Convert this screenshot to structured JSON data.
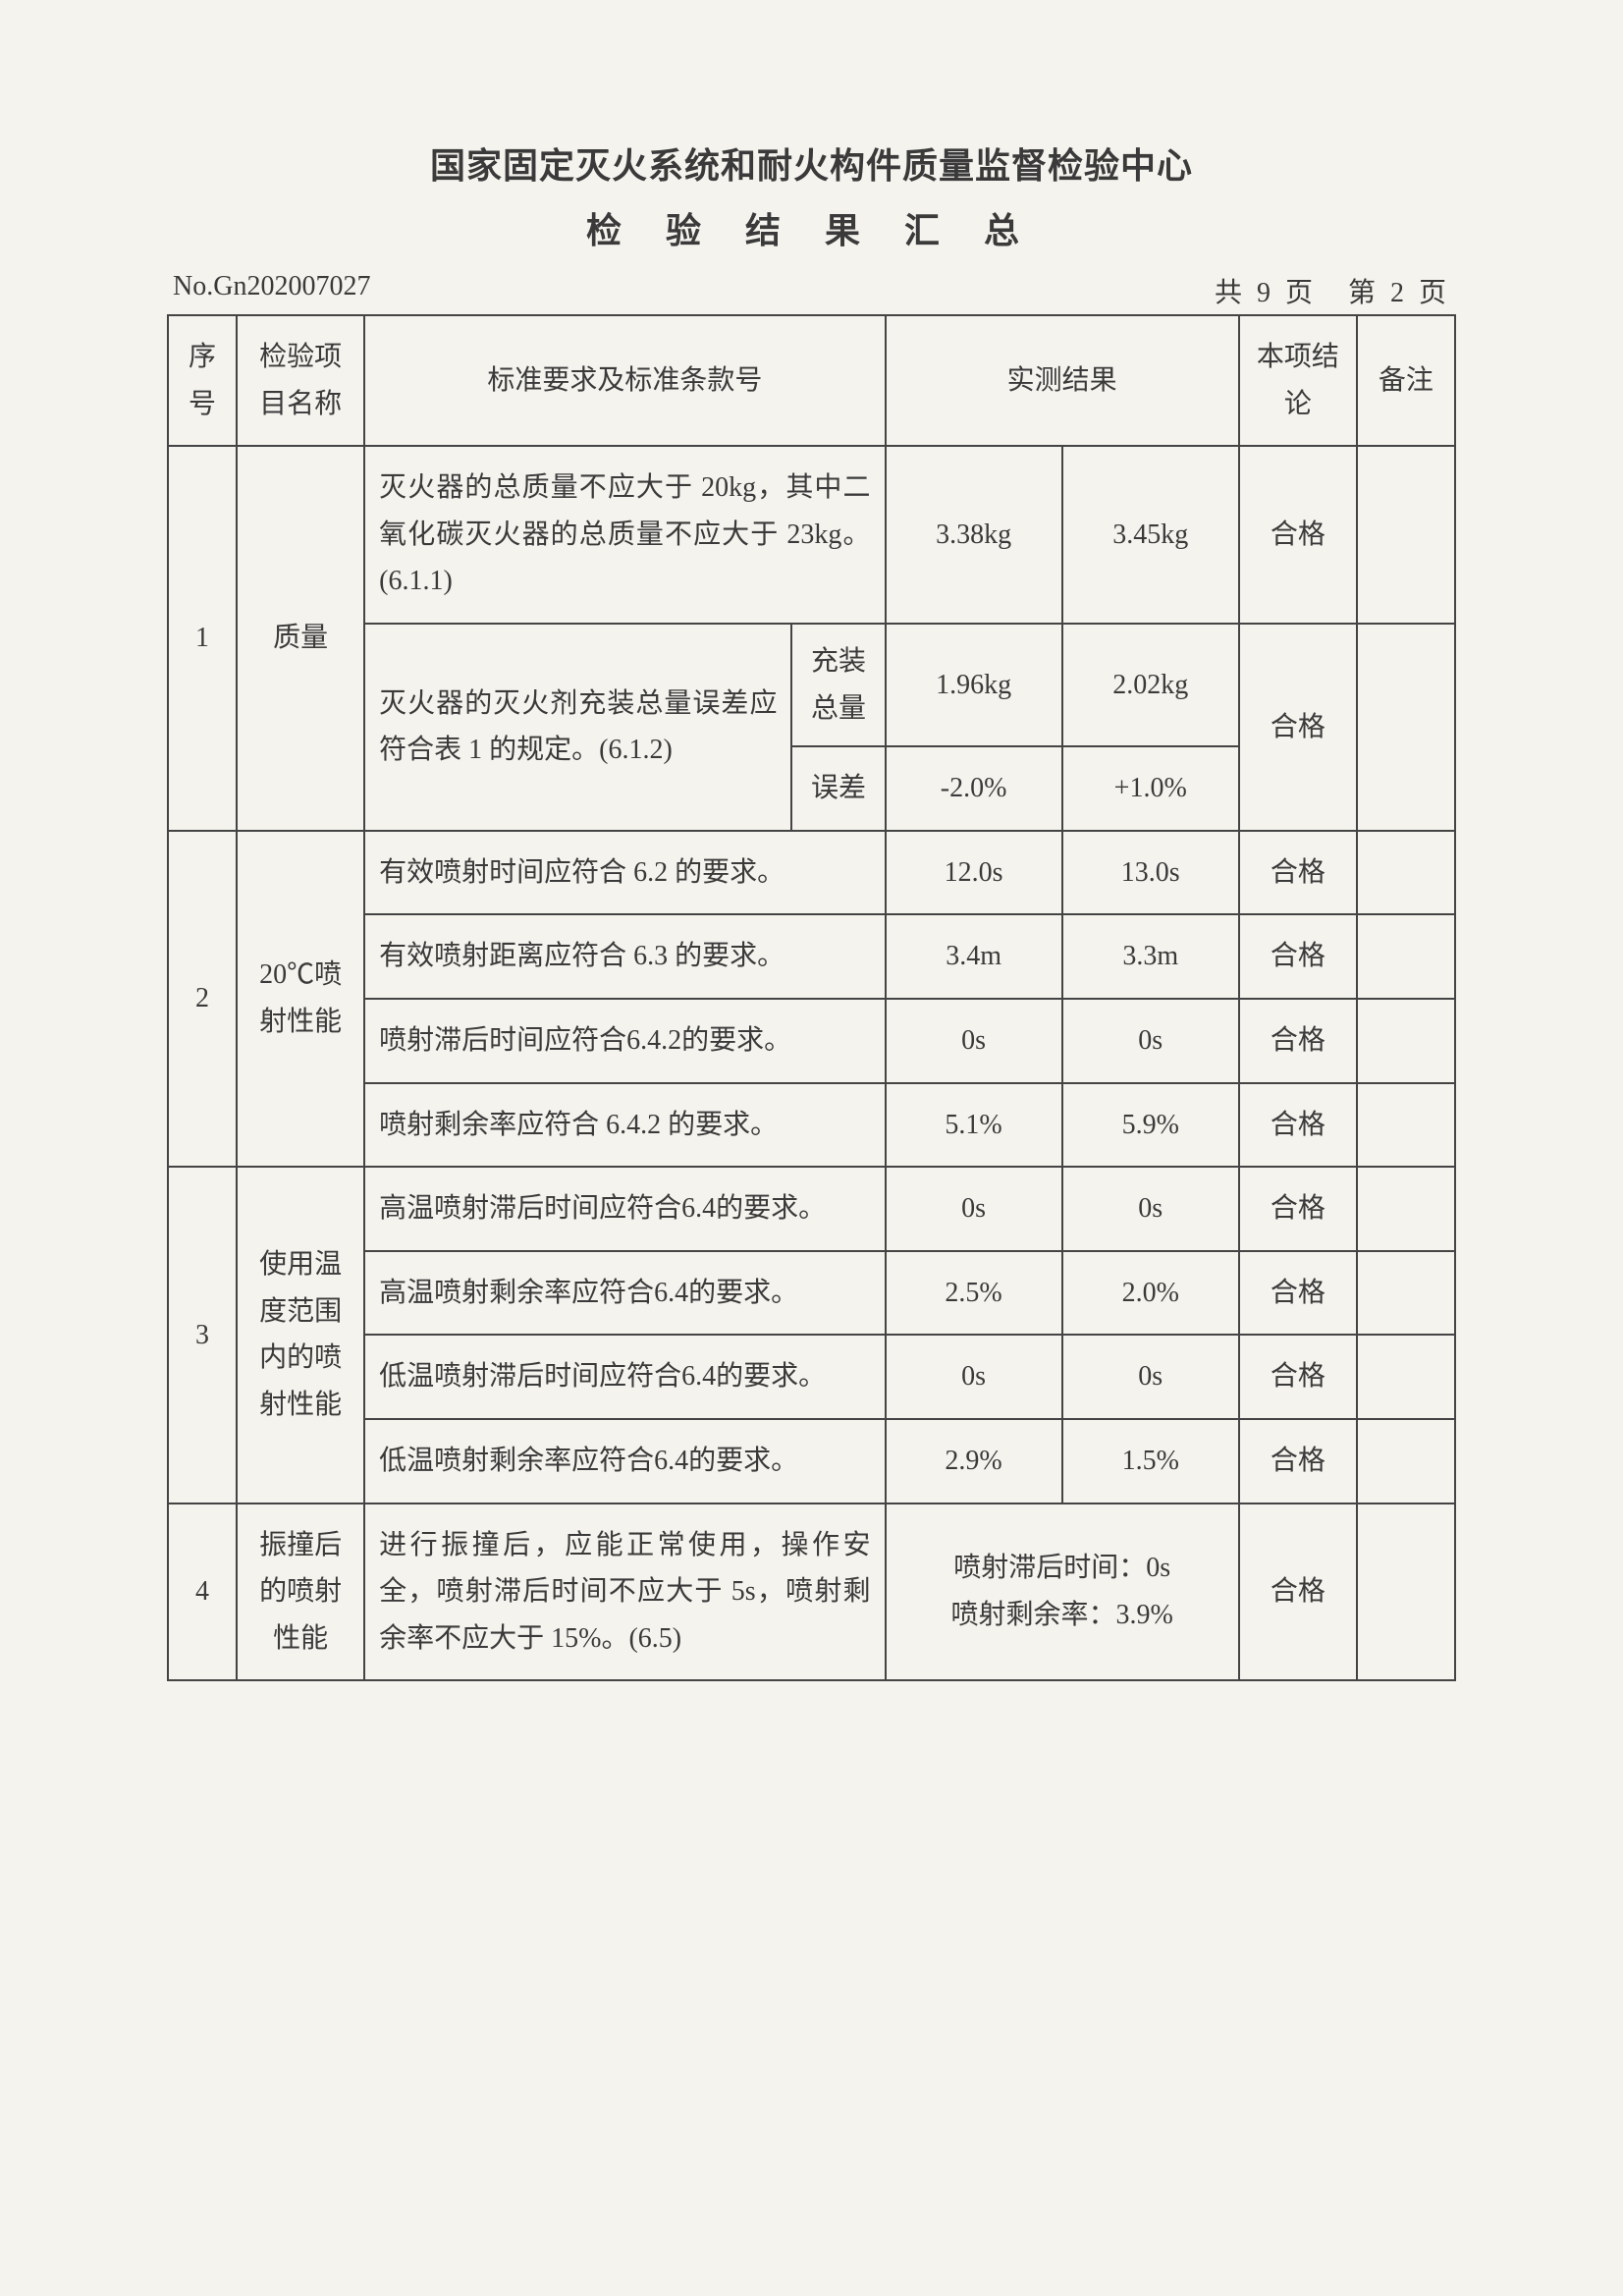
{
  "header": {
    "title1": "国家固定灭火系统和耐火构件质量监督检验中心",
    "title2": "检 验 结 果 汇 总",
    "docNo": "No.Gn202007027",
    "pageInfo": "共 9 页　第 2 页"
  },
  "columns": {
    "seq": "序号",
    "item": "检验项目名称",
    "std": "标准要求及标准条款号",
    "measured": "实测结果",
    "conclusion": "本项结论",
    "remark": "备注"
  },
  "rows": {
    "r1": {
      "seq": "1",
      "item": "质量",
      "std_a": "灭火器的总质量不应大于 20kg，其中二氧化碳灭火器的总质量不应大于 23kg。(6.1.1)",
      "m1_a": "3.38kg",
      "m2_a": "3.45kg",
      "conc_a": "合格",
      "std_b": "灭火器的灭火剂充装总量误差应符合表 1 的规定。(6.1.2)",
      "sub_b1": "充装总量",
      "m1_b1": "1.96kg",
      "m2_b1": "2.02kg",
      "sub_b2": "误差",
      "m1_b2": "-2.0%",
      "m2_b2": "+1.0%",
      "conc_b": "合格"
    },
    "r2": {
      "seq": "2",
      "item": "20℃喷射性能",
      "std_a": "有效喷射时间应符合 6.2 的要求。",
      "m1_a": "12.0s",
      "m2_a": "13.0s",
      "conc_a": "合格",
      "std_b": "有效喷射距离应符合 6.3 的要求。",
      "m1_b": "3.4m",
      "m2_b": "3.3m",
      "conc_b": "合格",
      "std_c": "喷射滞后时间应符合6.4.2的要求。",
      "m1_c": "0s",
      "m2_c": "0s",
      "conc_c": "合格",
      "std_d": "喷射剩余率应符合 6.4.2 的要求。",
      "m1_d": "5.1%",
      "m2_d": "5.9%",
      "conc_d": "合格"
    },
    "r3": {
      "seq": "3",
      "item": "使用温度范围内的喷射性能",
      "std_a": "高温喷射滞后时间应符合6.4的要求。",
      "m1_a": "0s",
      "m2_a": "0s",
      "conc_a": "合格",
      "std_b": "高温喷射剩余率应符合6.4的要求。",
      "m1_b": "2.5%",
      "m2_b": "2.0%",
      "conc_b": "合格",
      "std_c": "低温喷射滞后时间应符合6.4的要求。",
      "m1_c": "0s",
      "m2_c": "0s",
      "conc_c": "合格",
      "std_d": "低温喷射剩余率应符合6.4的要求。",
      "m1_d": "2.9%",
      "m2_d": "1.5%",
      "conc_d": "合格"
    },
    "r4": {
      "seq": "4",
      "item": "振撞后的喷射性能",
      "std": "进行振撞后，应能正常使用，操作安全，喷射滞后时间不应大于 5s，喷射剩余率不应大于 15%。(6.5)",
      "measured_line1": "喷射滞后时间：0s",
      "measured_line2": "喷射剩余率：3.9%",
      "conc": "合格"
    }
  }
}
